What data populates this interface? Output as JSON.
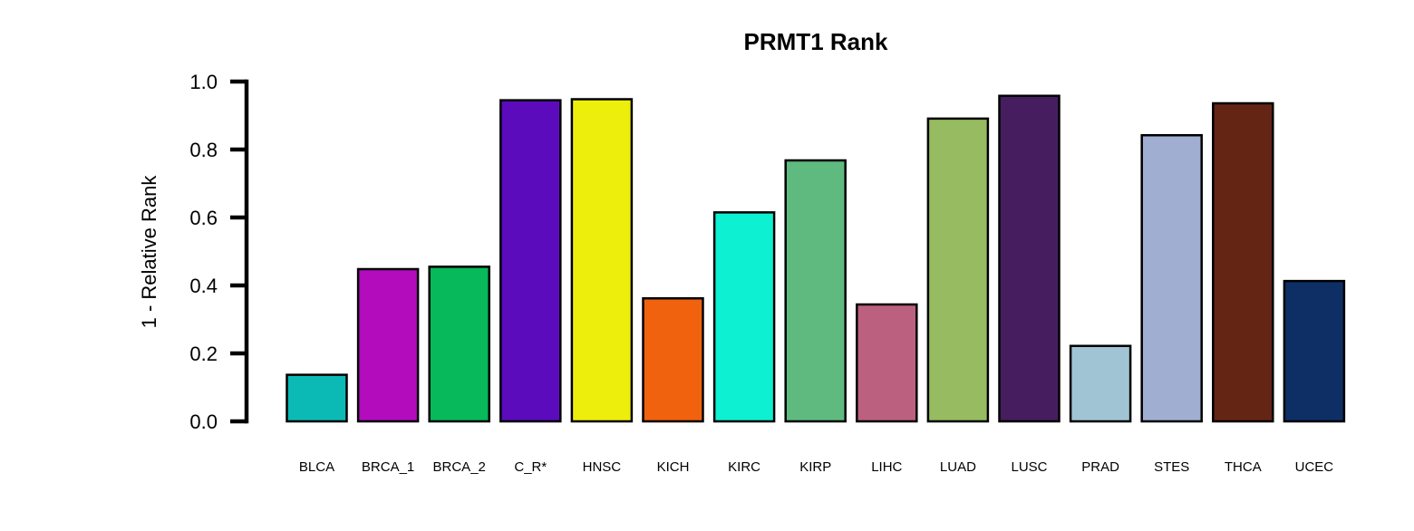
{
  "chart_data": {
    "type": "bar",
    "title": "PRMT1 Rank",
    "xlabel": "",
    "ylabel": "1 - Relative Rank",
    "ylim": [
      0,
      1.0
    ],
    "yticks": [
      "0.0",
      "0.2",
      "0.4",
      "0.6",
      "0.8",
      "1.0"
    ],
    "ytick_values": [
      0.0,
      0.2,
      0.4,
      0.6,
      0.8,
      1.0
    ],
    "grid": false,
    "legend": "none",
    "categories": [
      "BLCA",
      "BRCA_1",
      "BRCA_2",
      "C_R*",
      "HNSC",
      "KICH",
      "KIRC",
      "KIRP",
      "LIHC",
      "LUAD",
      "LUSC",
      "PRAD",
      "STES",
      "THCA",
      "UCEC"
    ],
    "values": [
      0.137,
      0.448,
      0.455,
      0.945,
      0.948,
      0.362,
      0.615,
      0.768,
      0.344,
      0.891,
      0.958,
      0.222,
      0.842,
      0.936,
      0.413
    ],
    "colors": [
      "#0cbab5",
      "#b20cbd",
      "#07b95a",
      "#5b0bbb",
      "#eeee0c",
      "#f0620e",
      "#0ef0d2",
      "#5fba7f",
      "#bc607f",
      "#96bb60",
      "#461d5f",
      "#a0c4d3",
      "#a0aed2",
      "#642514",
      "#0e2f66"
    ]
  }
}
